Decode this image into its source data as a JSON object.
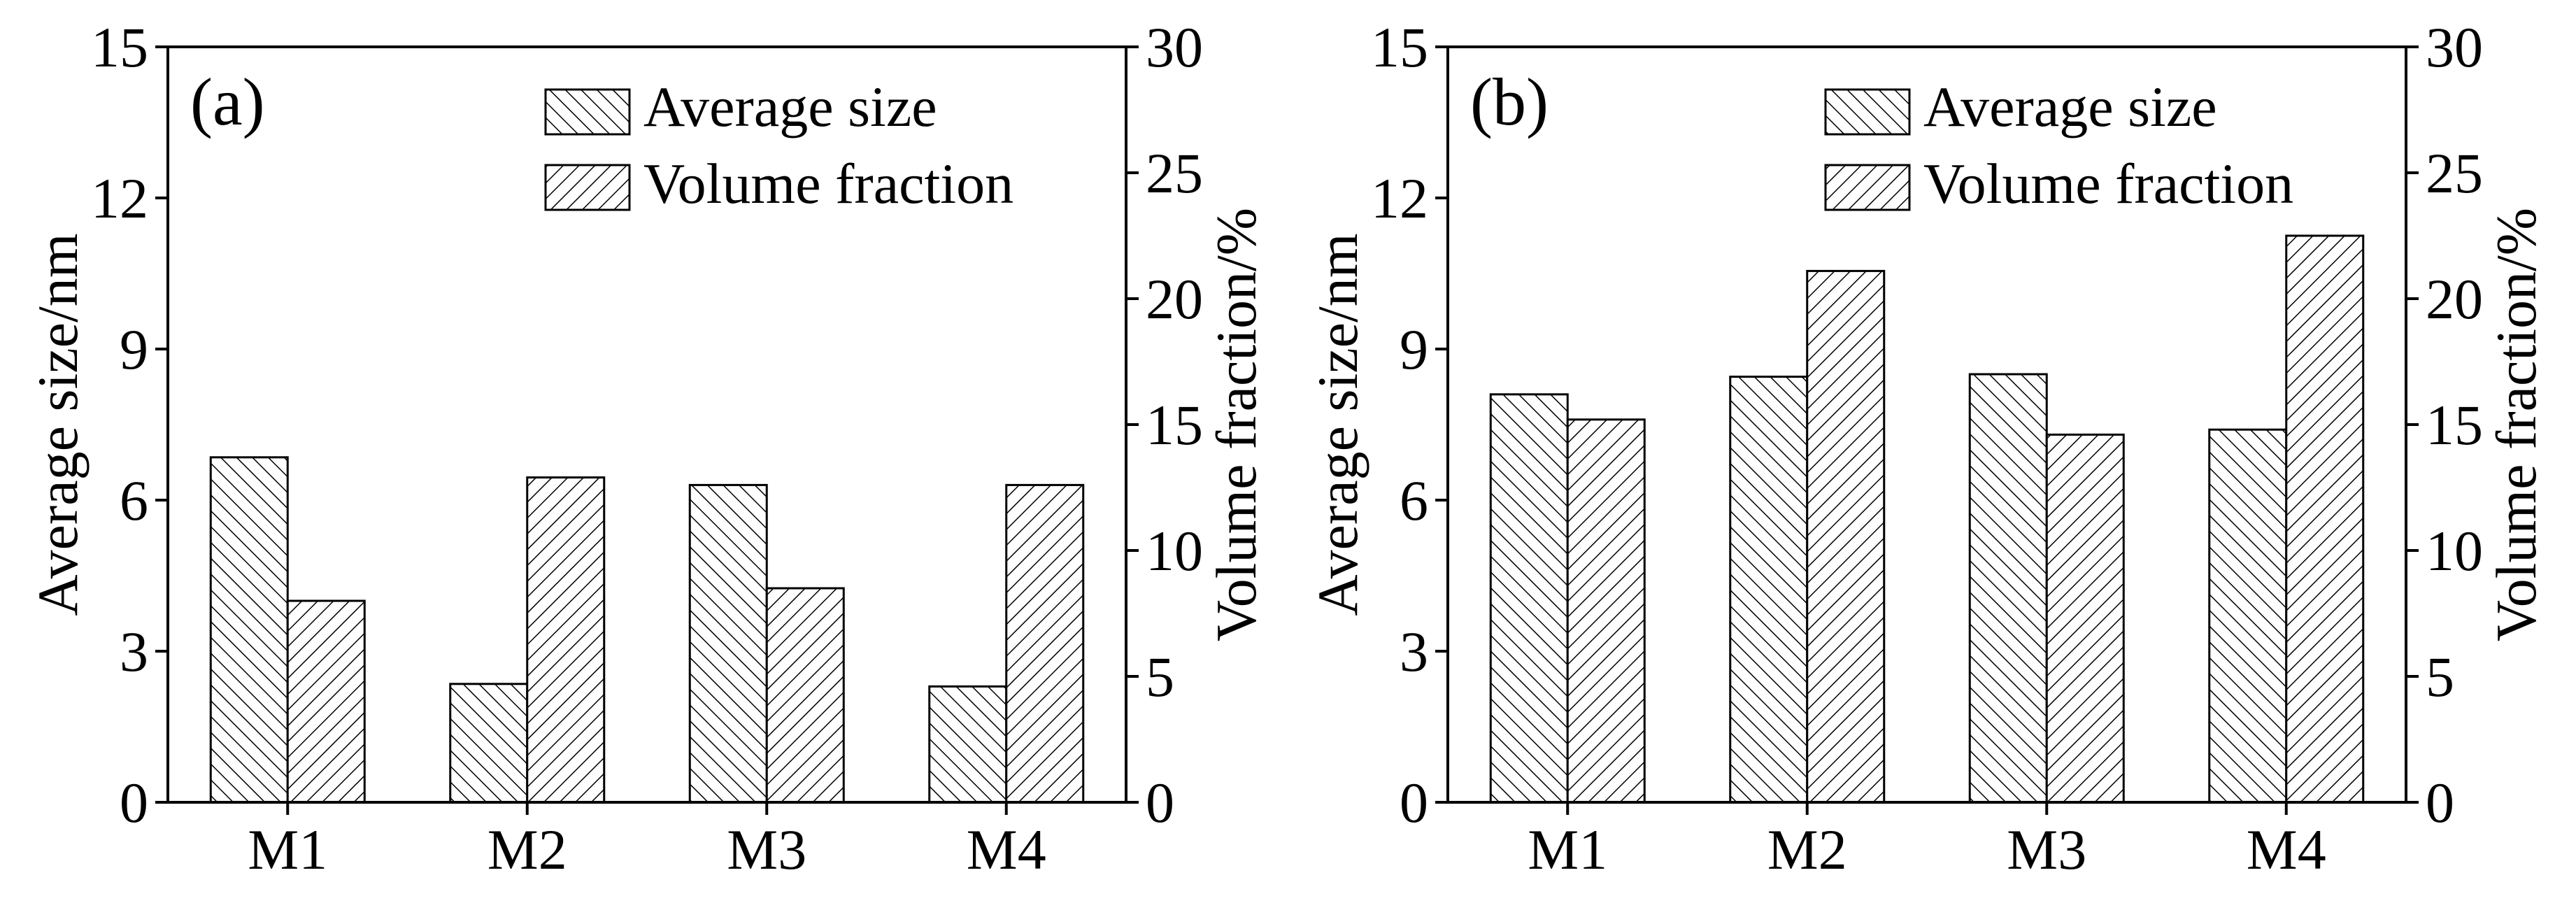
{
  "chart_data": [
    {
      "type": "bar",
      "panel_label": "(a)",
      "categories": [
        "M1",
        "M2",
        "M3",
        "M4"
      ],
      "series": [
        {
          "name": "Average size",
          "axis": "left",
          "values": [
            6.85,
            2.35,
            6.3,
            2.3
          ]
        },
        {
          "name": "Volume fraction",
          "axis": "right",
          "values": [
            8.0,
            12.9,
            8.5,
            12.6
          ]
        }
      ],
      "ylabel": "Average size/nm",
      "ylabel_right": "Volume fraction/%",
      "ylim": [
        0,
        15
      ],
      "ylim_right": [
        0,
        30
      ],
      "yticks": [
        "0",
        "3",
        "6",
        "9",
        "12",
        "15"
      ],
      "yticks_right": [
        "0",
        "5",
        "10",
        "15",
        "20",
        "25",
        "30"
      ],
      "legend_position": "top-right"
    },
    {
      "type": "bar",
      "panel_label": "(b)",
      "categories": [
        "M1",
        "M2",
        "M3",
        "M4"
      ],
      "series": [
        {
          "name": "Average size",
          "axis": "left",
          "values": [
            8.1,
            8.45,
            8.5,
            7.4
          ]
        },
        {
          "name": "Volume fraction",
          "axis": "right",
          "values": [
            15.2,
            21.1,
            14.6,
            22.5
          ]
        }
      ],
      "ylabel": "Average size/nm",
      "ylabel_right": "Volume fraction/%",
      "ylim": [
        0,
        15
      ],
      "ylim_right": [
        0,
        30
      ],
      "yticks": [
        "0",
        "3",
        "6",
        "9",
        "12",
        "15"
      ],
      "yticks_right": [
        "0",
        "5",
        "10",
        "15",
        "20",
        "25",
        "30"
      ],
      "legend_position": "top-right"
    }
  ]
}
